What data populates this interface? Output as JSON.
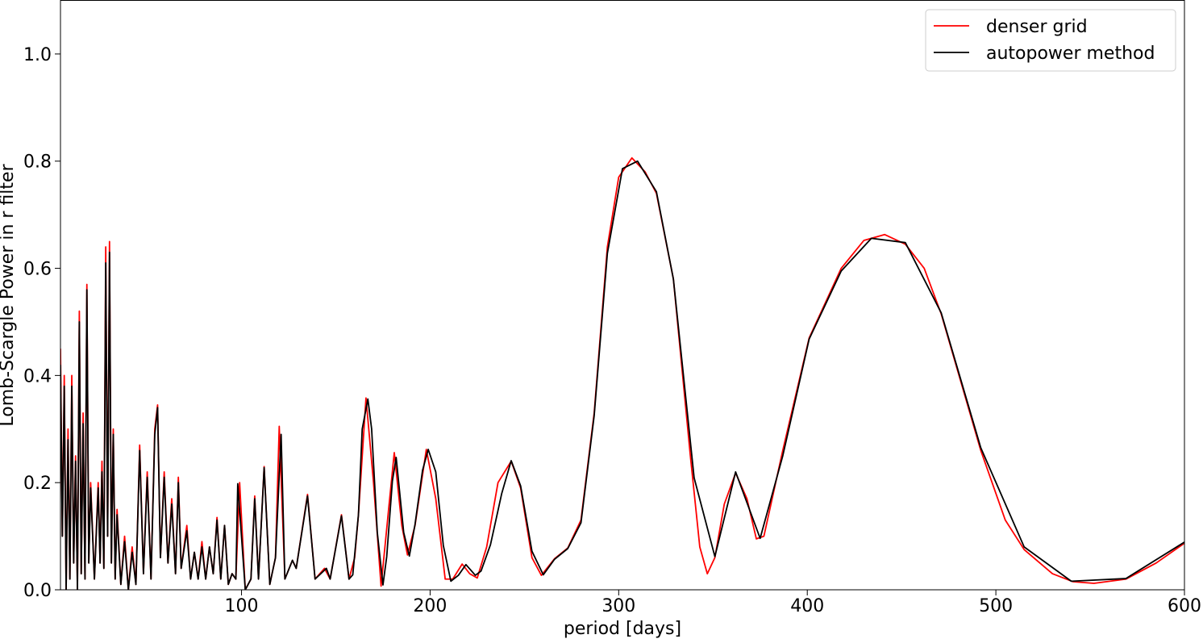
{
  "chart_data": {
    "type": "line",
    "xlabel": "period [days]",
    "ylabel": "Lomb-Scargle Power in r filter",
    "xlim": [
      4,
      600
    ],
    "ylim": [
      0,
      1.1
    ],
    "xticks": [
      100,
      200,
      300,
      400,
      500,
      600
    ],
    "yticks": [
      {
        "value": 0,
        "label": "0.0"
      },
      {
        "value": 0.2,
        "label": "0.2"
      },
      {
        "value": 0.4,
        "label": "0.4"
      },
      {
        "value": 0.6,
        "label": "0.6"
      },
      {
        "value": 0.8,
        "label": "0.8"
      },
      {
        "value": 1.0,
        "label": "1.0"
      }
    ],
    "legend": "upper right",
    "series": [
      {
        "name": "denser grid",
        "color": "#ff0000",
        "x": [
          4,
          5,
          6,
          7,
          8,
          9,
          10,
          11,
          12,
          13,
          14,
          15,
          16,
          17,
          18,
          19,
          20,
          22,
          24,
          25,
          26,
          27,
          28,
          29,
          30,
          31,
          32,
          33,
          34,
          36,
          38,
          40,
          42,
          44,
          46,
          48,
          50,
          52,
          54,
          55.5,
          57,
          59,
          61,
          63,
          65,
          66.5,
          68,
          71,
          73,
          75,
          77,
          79,
          81,
          83,
          85,
          87,
          89,
          91,
          93,
          95,
          97,
          99,
          102,
          105,
          107,
          109,
          112,
          115,
          118,
          120,
          123,
          127,
          129,
          135,
          139,
          144,
          147,
          153,
          157,
          160,
          162,
          166,
          170,
          174,
          178,
          181,
          185,
          188,
          192,
          198,
          203,
          208,
          212,
          217,
          221,
          225,
          230,
          236,
          243,
          248,
          254,
          259,
          266,
          273,
          280,
          287,
          294,
          300,
          307,
          314,
          320,
          329,
          338,
          343,
          347,
          351,
          356,
          362,
          368,
          373,
          377,
          387,
          401,
          418,
          430,
          441,
          452,
          462,
          471,
          492,
          505,
          515,
          530,
          541,
          552,
          569,
          585,
          600
        ],
        "values": [
          0.45,
          0.1,
          0.4,
          0.0,
          0.3,
          0.02,
          0.4,
          0.05,
          0.25,
          0.0,
          0.52,
          0.03,
          0.33,
          0.02,
          0.57,
          0.05,
          0.2,
          0.02,
          0.2,
          0.05,
          0.24,
          0.04,
          0.64,
          0.1,
          0.65,
          0.05,
          0.3,
          0.02,
          0.15,
          0.01,
          0.1,
          0.0,
          0.08,
          0.01,
          0.27,
          0.03,
          0.22,
          0.02,
          0.3,
          0.345,
          0.06,
          0.22,
          0.05,
          0.17,
          0.03,
          0.21,
          0.04,
          0.12,
          0.02,
          0.07,
          0.02,
          0.09,
          0.02,
          0.08,
          0.03,
          0.135,
          0.02,
          0.12,
          0.01,
          0.03,
          0.02,
          0.2,
          0.0,
          0.02,
          0.175,
          0.02,
          0.23,
          0.01,
          0.06,
          0.305,
          0.02,
          0.055,
          0.04,
          0.178,
          0.02,
          0.04,
          0.02,
          0.14,
          0.02,
          0.06,
          0.14,
          0.358,
          0.2,
          0.007,
          0.15,
          0.256,
          0.12,
          0.065,
          0.12,
          0.262,
          0.17,
          0.02,
          0.02,
          0.048,
          0.03,
          0.022,
          0.08,
          0.2,
          0.24,
          0.19,
          0.06,
          0.027,
          0.058,
          0.078,
          0.13,
          0.33,
          0.64,
          0.77,
          0.806,
          0.78,
          0.74,
          0.58,
          0.25,
          0.08,
          0.03,
          0.06,
          0.16,
          0.218,
          0.17,
          0.095,
          0.1,
          0.26,
          0.47,
          0.6,
          0.652,
          0.663,
          0.645,
          0.6,
          0.515,
          0.26,
          0.13,
          0.075,
          0.03,
          0.015,
          0.012,
          0.02,
          0.05,
          0.087
        ]
      },
      {
        "name": "autopower method",
        "color": "#000000",
        "x": [
          4,
          5,
          6,
          7,
          8,
          9,
          10,
          11,
          12,
          13,
          14,
          15,
          16,
          17,
          18,
          19,
          20,
          22,
          24,
          25,
          26,
          27,
          28,
          29,
          30,
          31,
          32,
          33,
          34,
          36,
          38,
          40,
          42,
          44,
          46,
          48,
          50,
          52,
          54,
          55.5,
          57,
          59,
          61,
          63,
          65,
          66.5,
          68,
          71,
          73,
          75,
          77,
          79,
          81,
          83,
          85,
          87,
          89,
          91,
          93,
          95,
          97,
          98,
          102,
          105,
          107,
          109,
          112,
          115,
          118,
          121,
          123,
          127,
          129,
          135,
          139,
          145,
          147,
          153,
          157,
          159,
          162,
          164,
          167,
          169,
          172,
          175,
          177,
          180,
          182,
          186,
          189,
          192,
          196,
          199,
          203,
          207,
          211,
          215,
          219,
          224,
          227,
          232,
          238,
          243,
          248,
          254,
          260,
          266,
          273,
          280,
          287,
          294,
          302,
          310,
          320,
          329,
          340,
          351,
          362,
          375,
          387,
          401,
          418,
          434,
          452,
          471,
          492,
          515,
          540,
          569,
          600
        ],
        "values": [
          0.42,
          0.1,
          0.38,
          0.0,
          0.28,
          0.02,
          0.38,
          0.05,
          0.24,
          0.0,
          0.5,
          0.03,
          0.31,
          0.02,
          0.56,
          0.05,
          0.19,
          0.02,
          0.19,
          0.05,
          0.22,
          0.04,
          0.61,
          0.1,
          0.63,
          0.05,
          0.29,
          0.02,
          0.14,
          0.01,
          0.09,
          0.0,
          0.07,
          0.01,
          0.26,
          0.03,
          0.21,
          0.02,
          0.29,
          0.34,
          0.06,
          0.21,
          0.05,
          0.16,
          0.03,
          0.2,
          0.04,
          0.11,
          0.02,
          0.07,
          0.02,
          0.08,
          0.02,
          0.08,
          0.03,
          0.13,
          0.02,
          0.12,
          0.01,
          0.03,
          0.02,
          0.198,
          0.0,
          0.02,
          0.17,
          0.02,
          0.228,
          0.01,
          0.06,
          0.29,
          0.02,
          0.055,
          0.04,
          0.175,
          0.02,
          0.04,
          0.02,
          0.138,
          0.02,
          0.028,
          0.14,
          0.3,
          0.356,
          0.3,
          0.107,
          0.009,
          0.062,
          0.203,
          0.247,
          0.107,
          0.063,
          0.122,
          0.223,
          0.262,
          0.22,
          0.083,
          0.016,
          0.027,
          0.047,
          0.027,
          0.035,
          0.084,
          0.18,
          0.241,
          0.194,
          0.072,
          0.028,
          0.057,
          0.077,
          0.125,
          0.325,
          0.628,
          0.786,
          0.8,
          0.743,
          0.58,
          0.209,
          0.062,
          0.22,
          0.096,
          0.25,
          0.468,
          0.595,
          0.656,
          0.648,
          0.517,
          0.265,
          0.08,
          0.016,
          0.021,
          0.089
        ]
      }
    ]
  }
}
